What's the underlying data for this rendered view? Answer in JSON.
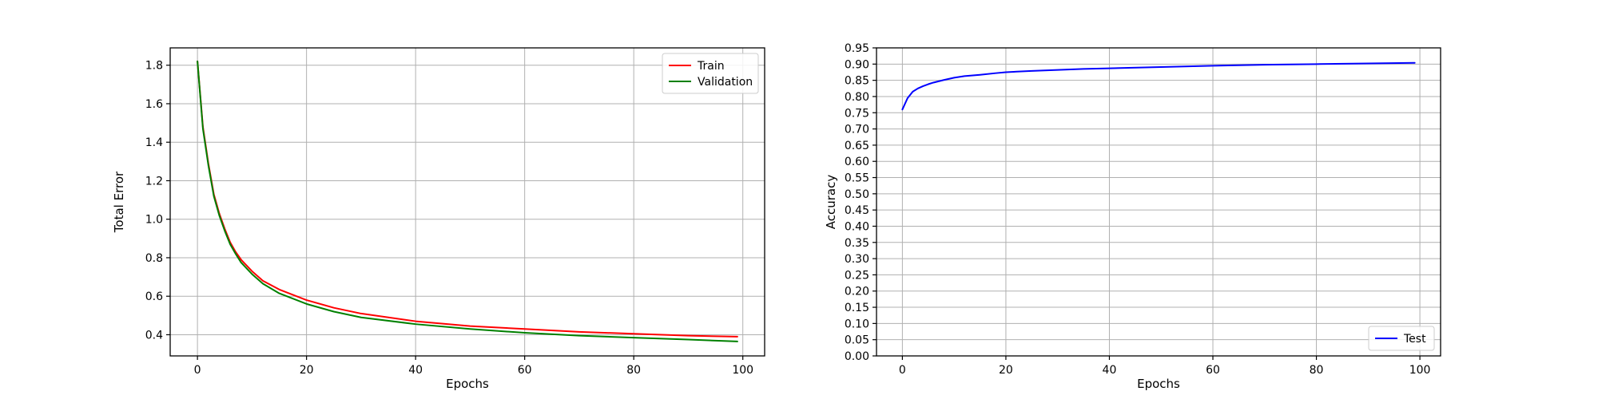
{
  "colors": {
    "train": "#ff0000",
    "validation": "#008000",
    "test": "#0000ff",
    "grid": "#b0b0b0"
  },
  "chart_data": [
    {
      "type": "line",
      "title": "",
      "xlabel": "Epochs",
      "ylabel": "Total Error",
      "xlim": [
        -5,
        104
      ],
      "ylim": [
        0.29,
        1.89
      ],
      "xticks": [
        0,
        20,
        40,
        60,
        80,
        100
      ],
      "xtick_labels": [
        "0",
        "20",
        "40",
        "60",
        "80",
        "100"
      ],
      "yticks": [
        0.4,
        0.6,
        0.8,
        1.0,
        1.2,
        1.4,
        1.6,
        1.8
      ],
      "ytick_labels": [
        "0.4",
        "0.6",
        "0.8",
        "1.0",
        "1.2",
        "1.4",
        "1.6",
        "1.8"
      ],
      "grid": true,
      "legend": "upper-right",
      "series": [
        {
          "name": "Train",
          "color": "#ff0000",
          "x": [
            0,
            1,
            2,
            3,
            4,
            5,
            6,
            7,
            8,
            10,
            12,
            15,
            20,
            25,
            30,
            40,
            50,
            60,
            70,
            80,
            90,
            99
          ],
          "y": [
            1.82,
            1.48,
            1.29,
            1.13,
            1.03,
            0.95,
            0.88,
            0.83,
            0.79,
            0.73,
            0.68,
            0.635,
            0.58,
            0.54,
            0.51,
            0.47,
            0.445,
            0.43,
            0.415,
            0.405,
            0.395,
            0.39
          ]
        },
        {
          "name": "Validation",
          "color": "#008000",
          "x": [
            0,
            1,
            2,
            3,
            4,
            5,
            6,
            7,
            8,
            10,
            12,
            15,
            20,
            25,
            30,
            40,
            50,
            60,
            70,
            80,
            90,
            99
          ],
          "y": [
            1.82,
            1.47,
            1.28,
            1.12,
            1.02,
            0.94,
            0.87,
            0.82,
            0.775,
            0.715,
            0.665,
            0.615,
            0.56,
            0.52,
            0.49,
            0.455,
            0.43,
            0.41,
            0.395,
            0.385,
            0.375,
            0.365
          ]
        }
      ]
    },
    {
      "type": "line",
      "title": "",
      "xlabel": "Epochs",
      "ylabel": "Accuracy",
      "xlim": [
        -5,
        104
      ],
      "ylim": [
        0.0,
        0.95
      ],
      "xticks": [
        0,
        20,
        40,
        60,
        80,
        100
      ],
      "xtick_labels": [
        "0",
        "20",
        "40",
        "60",
        "80",
        "100"
      ],
      "yticks": [
        0.0,
        0.05,
        0.1,
        0.15,
        0.2,
        0.25,
        0.3,
        0.35,
        0.4,
        0.45,
        0.5,
        0.55,
        0.6,
        0.65,
        0.7,
        0.75,
        0.8,
        0.85,
        0.9,
        0.95
      ],
      "ytick_labels": [
        "0.00",
        "0.05",
        "0.10",
        "0.15",
        "0.20",
        "0.25",
        "0.30",
        "0.35",
        "0.40",
        "0.45",
        "0.50",
        "0.55",
        "0.60",
        "0.65",
        "0.70",
        "0.75",
        "0.80",
        "0.85",
        "0.90",
        "0.95"
      ],
      "grid": true,
      "legend": "lower-right",
      "series": [
        {
          "name": "Test",
          "color": "#0000ff",
          "x": [
            0,
            1,
            2,
            3,
            4,
            5,
            6,
            8,
            10,
            12,
            15,
            18,
            20,
            25,
            30,
            35,
            40,
            50,
            60,
            70,
            80,
            90,
            99
          ],
          "y": [
            0.76,
            0.795,
            0.815,
            0.825,
            0.832,
            0.838,
            0.843,
            0.851,
            0.858,
            0.863,
            0.867,
            0.872,
            0.875,
            0.879,
            0.882,
            0.885,
            0.887,
            0.891,
            0.895,
            0.898,
            0.9,
            0.902,
            0.904
          ]
        }
      ]
    }
  ]
}
